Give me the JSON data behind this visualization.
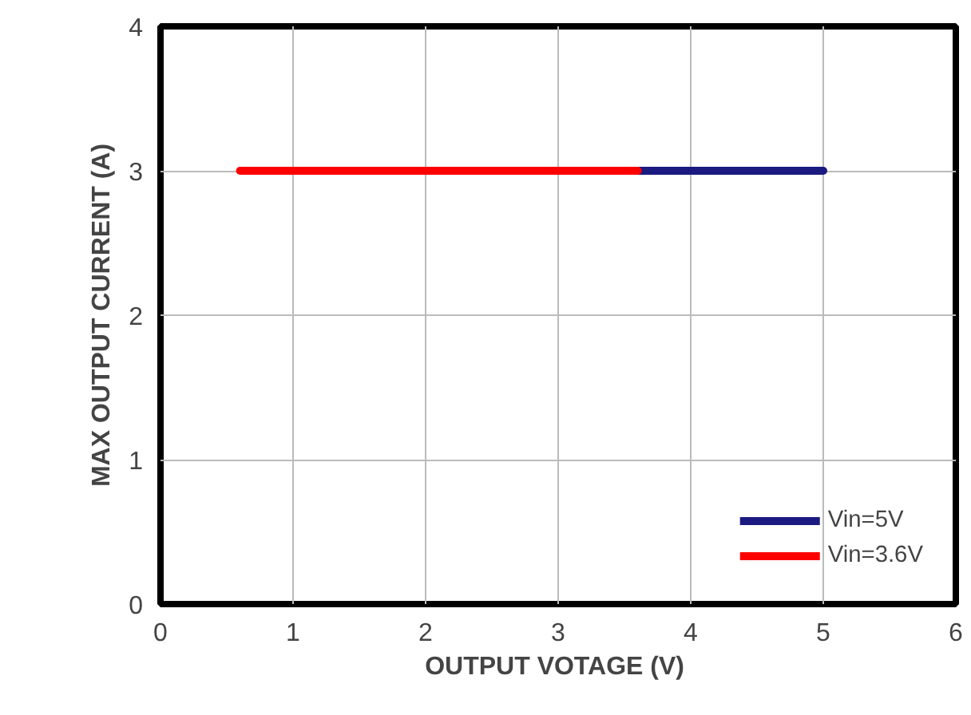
{
  "chart_data": {
    "type": "line",
    "xlabel": "OUTPUT  VOTAGE (V)",
    "ylabel": "MAX OUTPUT CURRENT (A)",
    "series": [
      {
        "name": "Vin=5V",
        "color": "#1a1a80",
        "x": [
          3.6,
          5
        ],
        "values": [
          3,
          3
        ]
      },
      {
        "name": "Vin=3.6V",
        "color": "#ff0000",
        "x": [
          0.6,
          3.6
        ],
        "values": [
          3,
          3
        ]
      }
    ],
    "xlim": [
      0,
      6
    ],
    "ylim": [
      0,
      4
    ],
    "xticks": [
      0,
      1,
      2,
      3,
      4,
      5,
      6
    ],
    "yticks": [
      0,
      1,
      2,
      3,
      4
    ],
    "grid": true,
    "legend": "bottom right",
    "marker": "none",
    "line_style": "solid"
  }
}
